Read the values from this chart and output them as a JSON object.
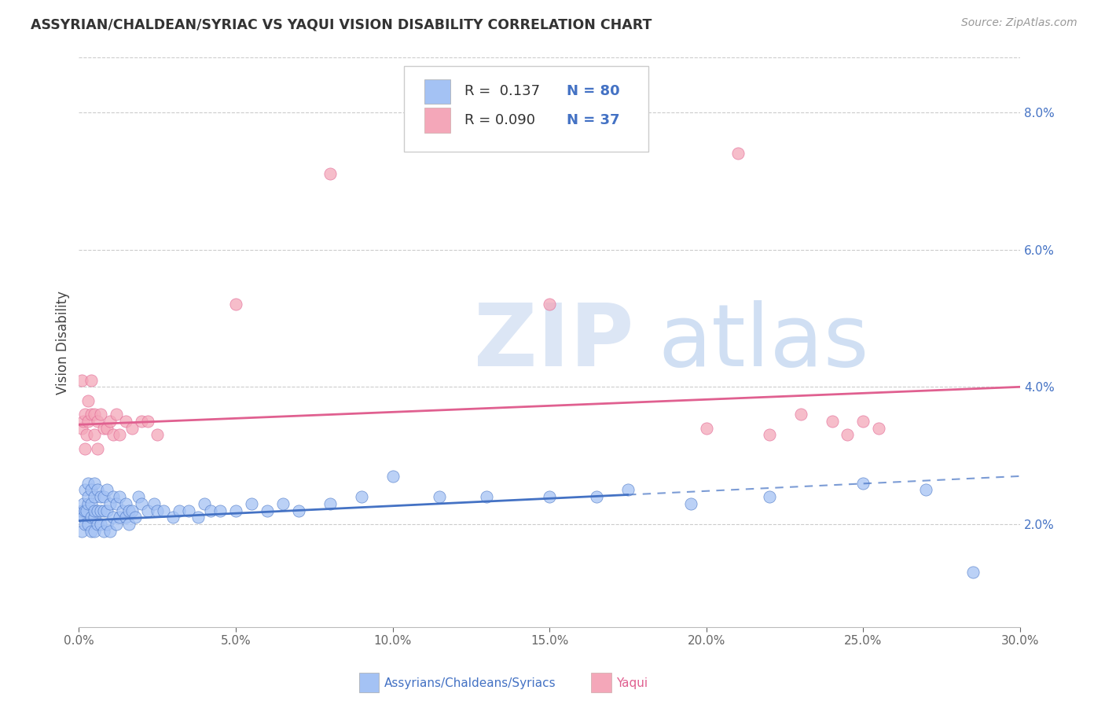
{
  "title": "ASSYRIAN/CHALDEAN/SYRIAC VS YAQUI VISION DISABILITY CORRELATION CHART",
  "source": "Source: ZipAtlas.com",
  "ylabel_label": "Vision Disability",
  "color_blue": "#a4c2f4",
  "color_pink": "#f4a7b9",
  "color_blue_line": "#4472c4",
  "color_pink_line": "#e06090",
  "xlim": [
    0.0,
    0.3
  ],
  "ylim": [
    0.005,
    0.088
  ],
  "yticks": [
    0.02,
    0.04,
    0.06,
    0.08
  ],
  "ytick_labels": [
    "2.0%",
    "4.0%",
    "6.0%",
    "8.0%"
  ],
  "xticks": [
    0.0,
    0.05,
    0.1,
    0.15,
    0.2,
    0.25,
    0.3
  ],
  "xtick_labels": [
    "0.0%",
    "5.0%",
    "10.0%",
    "15.0%",
    "20.0%",
    "25.0%",
    "30.0%"
  ],
  "blue_x": [
    0.0005,
    0.001,
    0.001,
    0.0015,
    0.0015,
    0.002,
    0.002,
    0.002,
    0.0025,
    0.003,
    0.003,
    0.003,
    0.003,
    0.004,
    0.004,
    0.004,
    0.004,
    0.005,
    0.005,
    0.005,
    0.005,
    0.005,
    0.006,
    0.006,
    0.006,
    0.007,
    0.007,
    0.007,
    0.008,
    0.008,
    0.008,
    0.009,
    0.009,
    0.009,
    0.01,
    0.01,
    0.011,
    0.011,
    0.012,
    0.012,
    0.013,
    0.013,
    0.014,
    0.015,
    0.015,
    0.016,
    0.016,
    0.017,
    0.018,
    0.019,
    0.02,
    0.022,
    0.024,
    0.025,
    0.027,
    0.03,
    0.032,
    0.035,
    0.038,
    0.04,
    0.042,
    0.045,
    0.05,
    0.055,
    0.06,
    0.065,
    0.07,
    0.08,
    0.09,
    0.1,
    0.115,
    0.13,
    0.15,
    0.165,
    0.175,
    0.195,
    0.22,
    0.25,
    0.27,
    0.285
  ],
  "blue_y": [
    0.0215,
    0.022,
    0.019,
    0.021,
    0.023,
    0.02,
    0.022,
    0.025,
    0.022,
    0.02,
    0.023,
    0.024,
    0.026,
    0.019,
    0.021,
    0.023,
    0.025,
    0.019,
    0.021,
    0.022,
    0.024,
    0.026,
    0.02,
    0.022,
    0.025,
    0.02,
    0.022,
    0.024,
    0.019,
    0.022,
    0.024,
    0.02,
    0.022,
    0.025,
    0.019,
    0.023,
    0.021,
    0.024,
    0.02,
    0.023,
    0.021,
    0.024,
    0.022,
    0.021,
    0.023,
    0.02,
    0.022,
    0.022,
    0.021,
    0.024,
    0.023,
    0.022,
    0.023,
    0.022,
    0.022,
    0.021,
    0.022,
    0.022,
    0.021,
    0.023,
    0.022,
    0.022,
    0.022,
    0.023,
    0.022,
    0.023,
    0.022,
    0.023,
    0.024,
    0.027,
    0.024,
    0.024,
    0.024,
    0.024,
    0.025,
    0.023,
    0.024,
    0.026,
    0.025,
    0.013
  ],
  "pink_x": [
    0.001,
    0.001,
    0.0015,
    0.002,
    0.002,
    0.0025,
    0.003,
    0.003,
    0.004,
    0.004,
    0.005,
    0.005,
    0.006,
    0.006,
    0.007,
    0.008,
    0.009,
    0.01,
    0.011,
    0.012,
    0.013,
    0.015,
    0.017,
    0.02,
    0.022,
    0.025,
    0.05,
    0.08,
    0.15,
    0.2,
    0.21,
    0.22,
    0.23,
    0.24,
    0.245,
    0.25,
    0.255
  ],
  "pink_y": [
    0.034,
    0.041,
    0.035,
    0.031,
    0.036,
    0.033,
    0.035,
    0.038,
    0.036,
    0.041,
    0.033,
    0.036,
    0.031,
    0.035,
    0.036,
    0.034,
    0.034,
    0.035,
    0.033,
    0.036,
    0.033,
    0.035,
    0.034,
    0.035,
    0.035,
    0.033,
    0.052,
    0.071,
    0.052,
    0.034,
    0.074,
    0.033,
    0.036,
    0.035,
    0.033,
    0.035,
    0.034
  ],
  "blue_line_x0": 0.0,
  "blue_line_x1_solid": 0.175,
  "blue_line_x1_dash": 0.3,
  "blue_line_y0": 0.0205,
  "blue_line_y1": 0.027,
  "pink_line_x0": 0.0,
  "pink_line_x1": 0.3,
  "pink_line_y0": 0.0345,
  "pink_line_y1": 0.04
}
